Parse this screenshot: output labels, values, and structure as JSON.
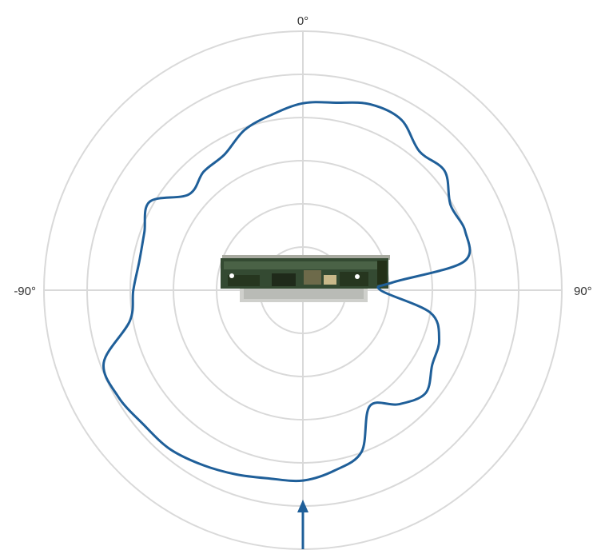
{
  "chart_data": {
    "type": "polar-line",
    "angle_labels": [
      {
        "angle": 0,
        "text": "0°"
      },
      {
        "angle": 90,
        "text": "90°"
      },
      {
        "angle": -90,
        "text": "-90°"
      }
    ],
    "radial_rings": 6,
    "radial_range": [
      0,
      6
    ],
    "grid": true,
    "series": [
      {
        "color": "#1f5f99",
        "points": [
          {
            "angle": 0,
            "r": 4.33
          },
          {
            "angle": 10,
            "r": 4.41
          },
          {
            "angle": 20,
            "r": 4.58
          },
          {
            "angle": 30,
            "r": 4.56
          },
          {
            "angle": 40,
            "r": 4.2
          },
          {
            "angle": 50,
            "r": 4.29
          },
          {
            "angle": 60,
            "r": 3.95
          },
          {
            "angle": 70,
            "r": 4.0
          },
          {
            "angle": 80,
            "r": 3.78
          },
          {
            "angle": 85,
            "r": 2.1
          },
          {
            "angle": 90,
            "r": 1.8
          },
          {
            "angle": 100,
            "r": 3.0
          },
          {
            "angle": 110,
            "r": 3.36
          },
          {
            "angle": 120,
            "r": 3.46
          },
          {
            "angle": 130,
            "r": 3.71
          },
          {
            "angle": 140,
            "r": 3.45
          },
          {
            "angle": 150,
            "r": 3.1
          },
          {
            "angle": 160,
            "r": 3.98
          },
          {
            "angle": 170,
            "r": 4.24
          },
          {
            "angle": 180,
            "r": 4.41
          },
          {
            "angle": 190,
            "r": 4.43
          },
          {
            "angle": 200,
            "r": 4.54
          },
          {
            "angle": 210,
            "r": 4.67
          },
          {
            "angle": 220,
            "r": 4.8
          },
          {
            "angle": 230,
            "r": 4.83
          },
          {
            "angle": 240,
            "r": 4.94
          },
          {
            "angle": 250,
            "r": 4.91
          },
          {
            "angle": 260,
            "r": 4.07
          },
          {
            "angle": 270,
            "r": 3.93
          },
          {
            "angle": 280,
            "r": 3.85
          },
          {
            "angle": 290,
            "r": 3.91
          },
          {
            "angle": 300,
            "r": 4.1
          },
          {
            "angle": 310,
            "r": 3.45
          },
          {
            "angle": 320,
            "r": 3.58
          },
          {
            "angle": 330,
            "r": 3.63
          },
          {
            "angle": 340,
            "r": 3.95
          },
          {
            "angle": 350,
            "r": 4.13
          }
        ]
      }
    ],
    "marker_arrow": {
      "angle": 180,
      "color": "#1f5f99"
    },
    "center_image": "circuit-board-photo"
  }
}
